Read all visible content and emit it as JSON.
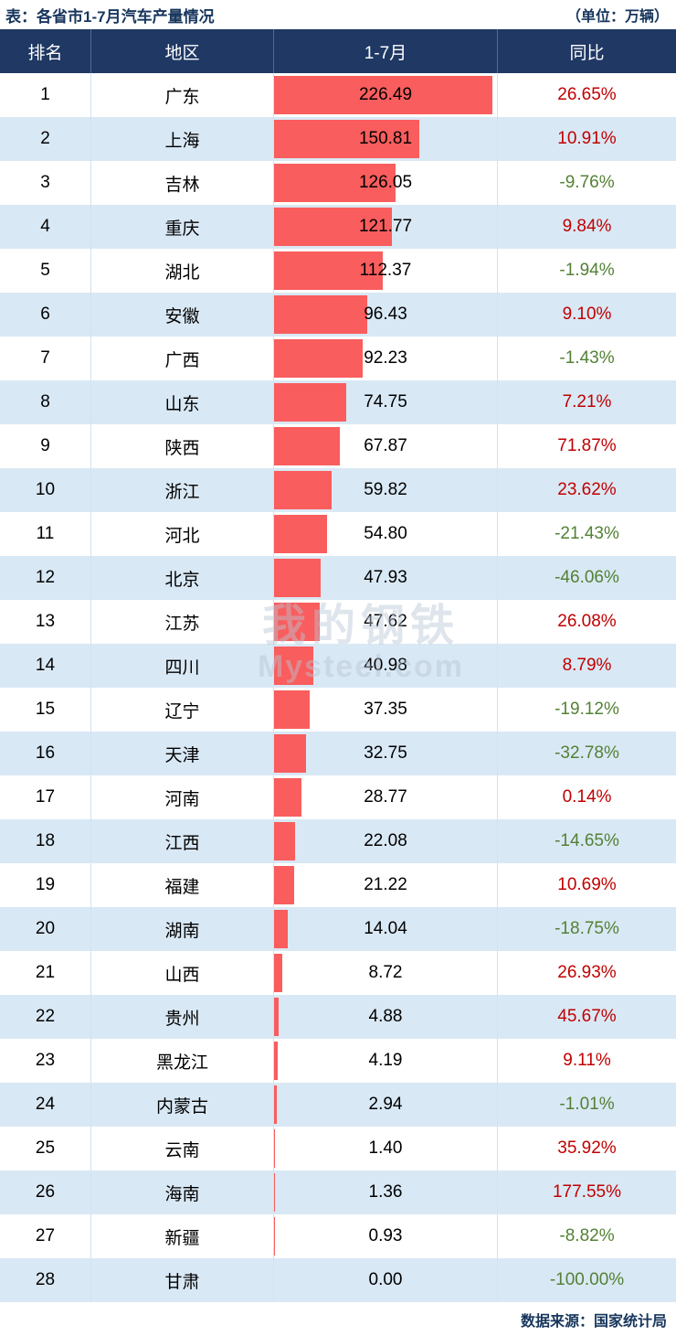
{
  "title": "表：各省市1-7月汽车产量情况",
  "unit": "（单位：万辆）",
  "footer": "数据来源：国家统计局",
  "watermark": {
    "cn": "我的钢铁",
    "en": "Mysteel.com"
  },
  "columns": {
    "rank": "排名",
    "region": "地区",
    "period": "1-7月",
    "yoy": "同比"
  },
  "colors": {
    "header_bg": "#1f3864",
    "row_alt_bg": "#d9e8f5",
    "bar": "#f95d5d",
    "yoy_positive": "#c00000",
    "yoy_negative": "#538135"
  },
  "chart_data": {
    "type": "bar",
    "title": "各省市1-7月汽车产量情况",
    "xlabel": "1-7月汽车产量",
    "ylabel": "地区",
    "unit": "万辆",
    "max_value": 226.49,
    "legend": null,
    "rows": [
      {
        "rank": "1",
        "region": "广东",
        "value": 226.49,
        "value_label": "226.49",
        "yoy": "26.65%",
        "trend": "up"
      },
      {
        "rank": "2",
        "region": "上海",
        "value": 150.81,
        "value_label": "150.81",
        "yoy": "10.91%",
        "trend": "up"
      },
      {
        "rank": "3",
        "region": "吉林",
        "value": 126.05,
        "value_label": "126.05",
        "yoy": "-9.76%",
        "trend": "down"
      },
      {
        "rank": "4",
        "region": "重庆",
        "value": 121.77,
        "value_label": "121.77",
        "yoy": "9.84%",
        "trend": "up"
      },
      {
        "rank": "5",
        "region": "湖北",
        "value": 112.37,
        "value_label": "112.37",
        "yoy": "-1.94%",
        "trend": "down"
      },
      {
        "rank": "6",
        "region": "安徽",
        "value": 96.43,
        "value_label": "96.43",
        "yoy": "9.10%",
        "trend": "up"
      },
      {
        "rank": "7",
        "region": "广西",
        "value": 92.23,
        "value_label": "92.23",
        "yoy": "-1.43%",
        "trend": "down"
      },
      {
        "rank": "8",
        "region": "山东",
        "value": 74.75,
        "value_label": "74.75",
        "yoy": "7.21%",
        "trend": "up"
      },
      {
        "rank": "9",
        "region": "陕西",
        "value": 67.87,
        "value_label": "67.87",
        "yoy": "71.87%",
        "trend": "up"
      },
      {
        "rank": "10",
        "region": "浙江",
        "value": 59.82,
        "value_label": "59.82",
        "yoy": "23.62%",
        "trend": "up"
      },
      {
        "rank": "11",
        "region": "河北",
        "value": 54.8,
        "value_label": "54.80",
        "yoy": "-21.43%",
        "trend": "down"
      },
      {
        "rank": "12",
        "region": "北京",
        "value": 47.93,
        "value_label": "47.93",
        "yoy": "-46.06%",
        "trend": "down"
      },
      {
        "rank": "13",
        "region": "江苏",
        "value": 47.62,
        "value_label": "47.62",
        "yoy": "26.08%",
        "trend": "up"
      },
      {
        "rank": "14",
        "region": "四川",
        "value": 40.98,
        "value_label": "40.98",
        "yoy": "8.79%",
        "trend": "up"
      },
      {
        "rank": "15",
        "region": "辽宁",
        "value": 37.35,
        "value_label": "37.35",
        "yoy": "-19.12%",
        "trend": "down"
      },
      {
        "rank": "16",
        "region": "天津",
        "value": 32.75,
        "value_label": "32.75",
        "yoy": "-32.78%",
        "trend": "down"
      },
      {
        "rank": "17",
        "region": "河南",
        "value": 28.77,
        "value_label": "28.77",
        "yoy": "0.14%",
        "trend": "up"
      },
      {
        "rank": "18",
        "region": "江西",
        "value": 22.08,
        "value_label": "22.08",
        "yoy": "-14.65%",
        "trend": "down"
      },
      {
        "rank": "19",
        "region": "福建",
        "value": 21.22,
        "value_label": "21.22",
        "yoy": "10.69%",
        "trend": "up"
      },
      {
        "rank": "20",
        "region": "湖南",
        "value": 14.04,
        "value_label": "14.04",
        "yoy": "-18.75%",
        "trend": "down"
      },
      {
        "rank": "21",
        "region": "山西",
        "value": 8.72,
        "value_label": "8.72",
        "yoy": "26.93%",
        "trend": "up"
      },
      {
        "rank": "22",
        "region": "贵州",
        "value": 4.88,
        "value_label": "4.88",
        "yoy": "45.67%",
        "trend": "up"
      },
      {
        "rank": "23",
        "region": "黑龙江",
        "value": 4.19,
        "value_label": "4.19",
        "yoy": "9.11%",
        "trend": "up"
      },
      {
        "rank": "24",
        "region": "内蒙古",
        "value": 2.94,
        "value_label": "2.94",
        "yoy": "-1.01%",
        "trend": "down"
      },
      {
        "rank": "25",
        "region": "云南",
        "value": 1.4,
        "value_label": "1.40",
        "yoy": "35.92%",
        "trend": "up"
      },
      {
        "rank": "26",
        "region": "海南",
        "value": 1.36,
        "value_label": "1.36",
        "yoy": "177.55%",
        "trend": "up"
      },
      {
        "rank": "27",
        "region": "新疆",
        "value": 0.93,
        "value_label": "0.93",
        "yoy": "-8.82%",
        "trend": "down"
      },
      {
        "rank": "28",
        "region": "甘肃",
        "value": 0.0,
        "value_label": "0.00",
        "yoy": "-100.00%",
        "trend": "down"
      }
    ]
  }
}
